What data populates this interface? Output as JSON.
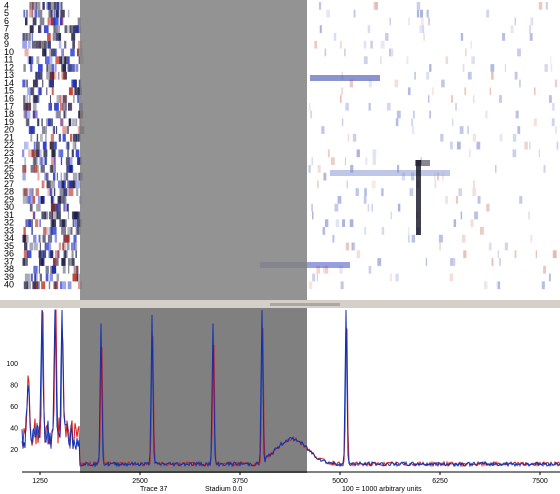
{
  "lanes": [
    "4",
    "5",
    "6",
    "7",
    "8",
    "9",
    "10",
    "11",
    "12",
    "13",
    "14",
    "15",
    "16",
    "17",
    "18",
    "19",
    "20",
    "21",
    "22",
    "23",
    "24",
    "25",
    "26",
    "27",
    "28",
    "29",
    "30",
    "31",
    "32",
    "33",
    "34",
    "35",
    "36",
    "37",
    "38",
    "39",
    "40"
  ],
  "plot": {
    "y_ticks": [
      "20",
      "40",
      "60",
      "80",
      "100"
    ],
    "x_ticks": [
      "1250",
      "2500",
      "3750",
      "5000",
      "6250",
      "7500"
    ]
  },
  "status": {
    "trace": "Trace 37",
    "stadium": "Stadium 0.0",
    "units": "100 = 1000 arbitrary units"
  }
}
